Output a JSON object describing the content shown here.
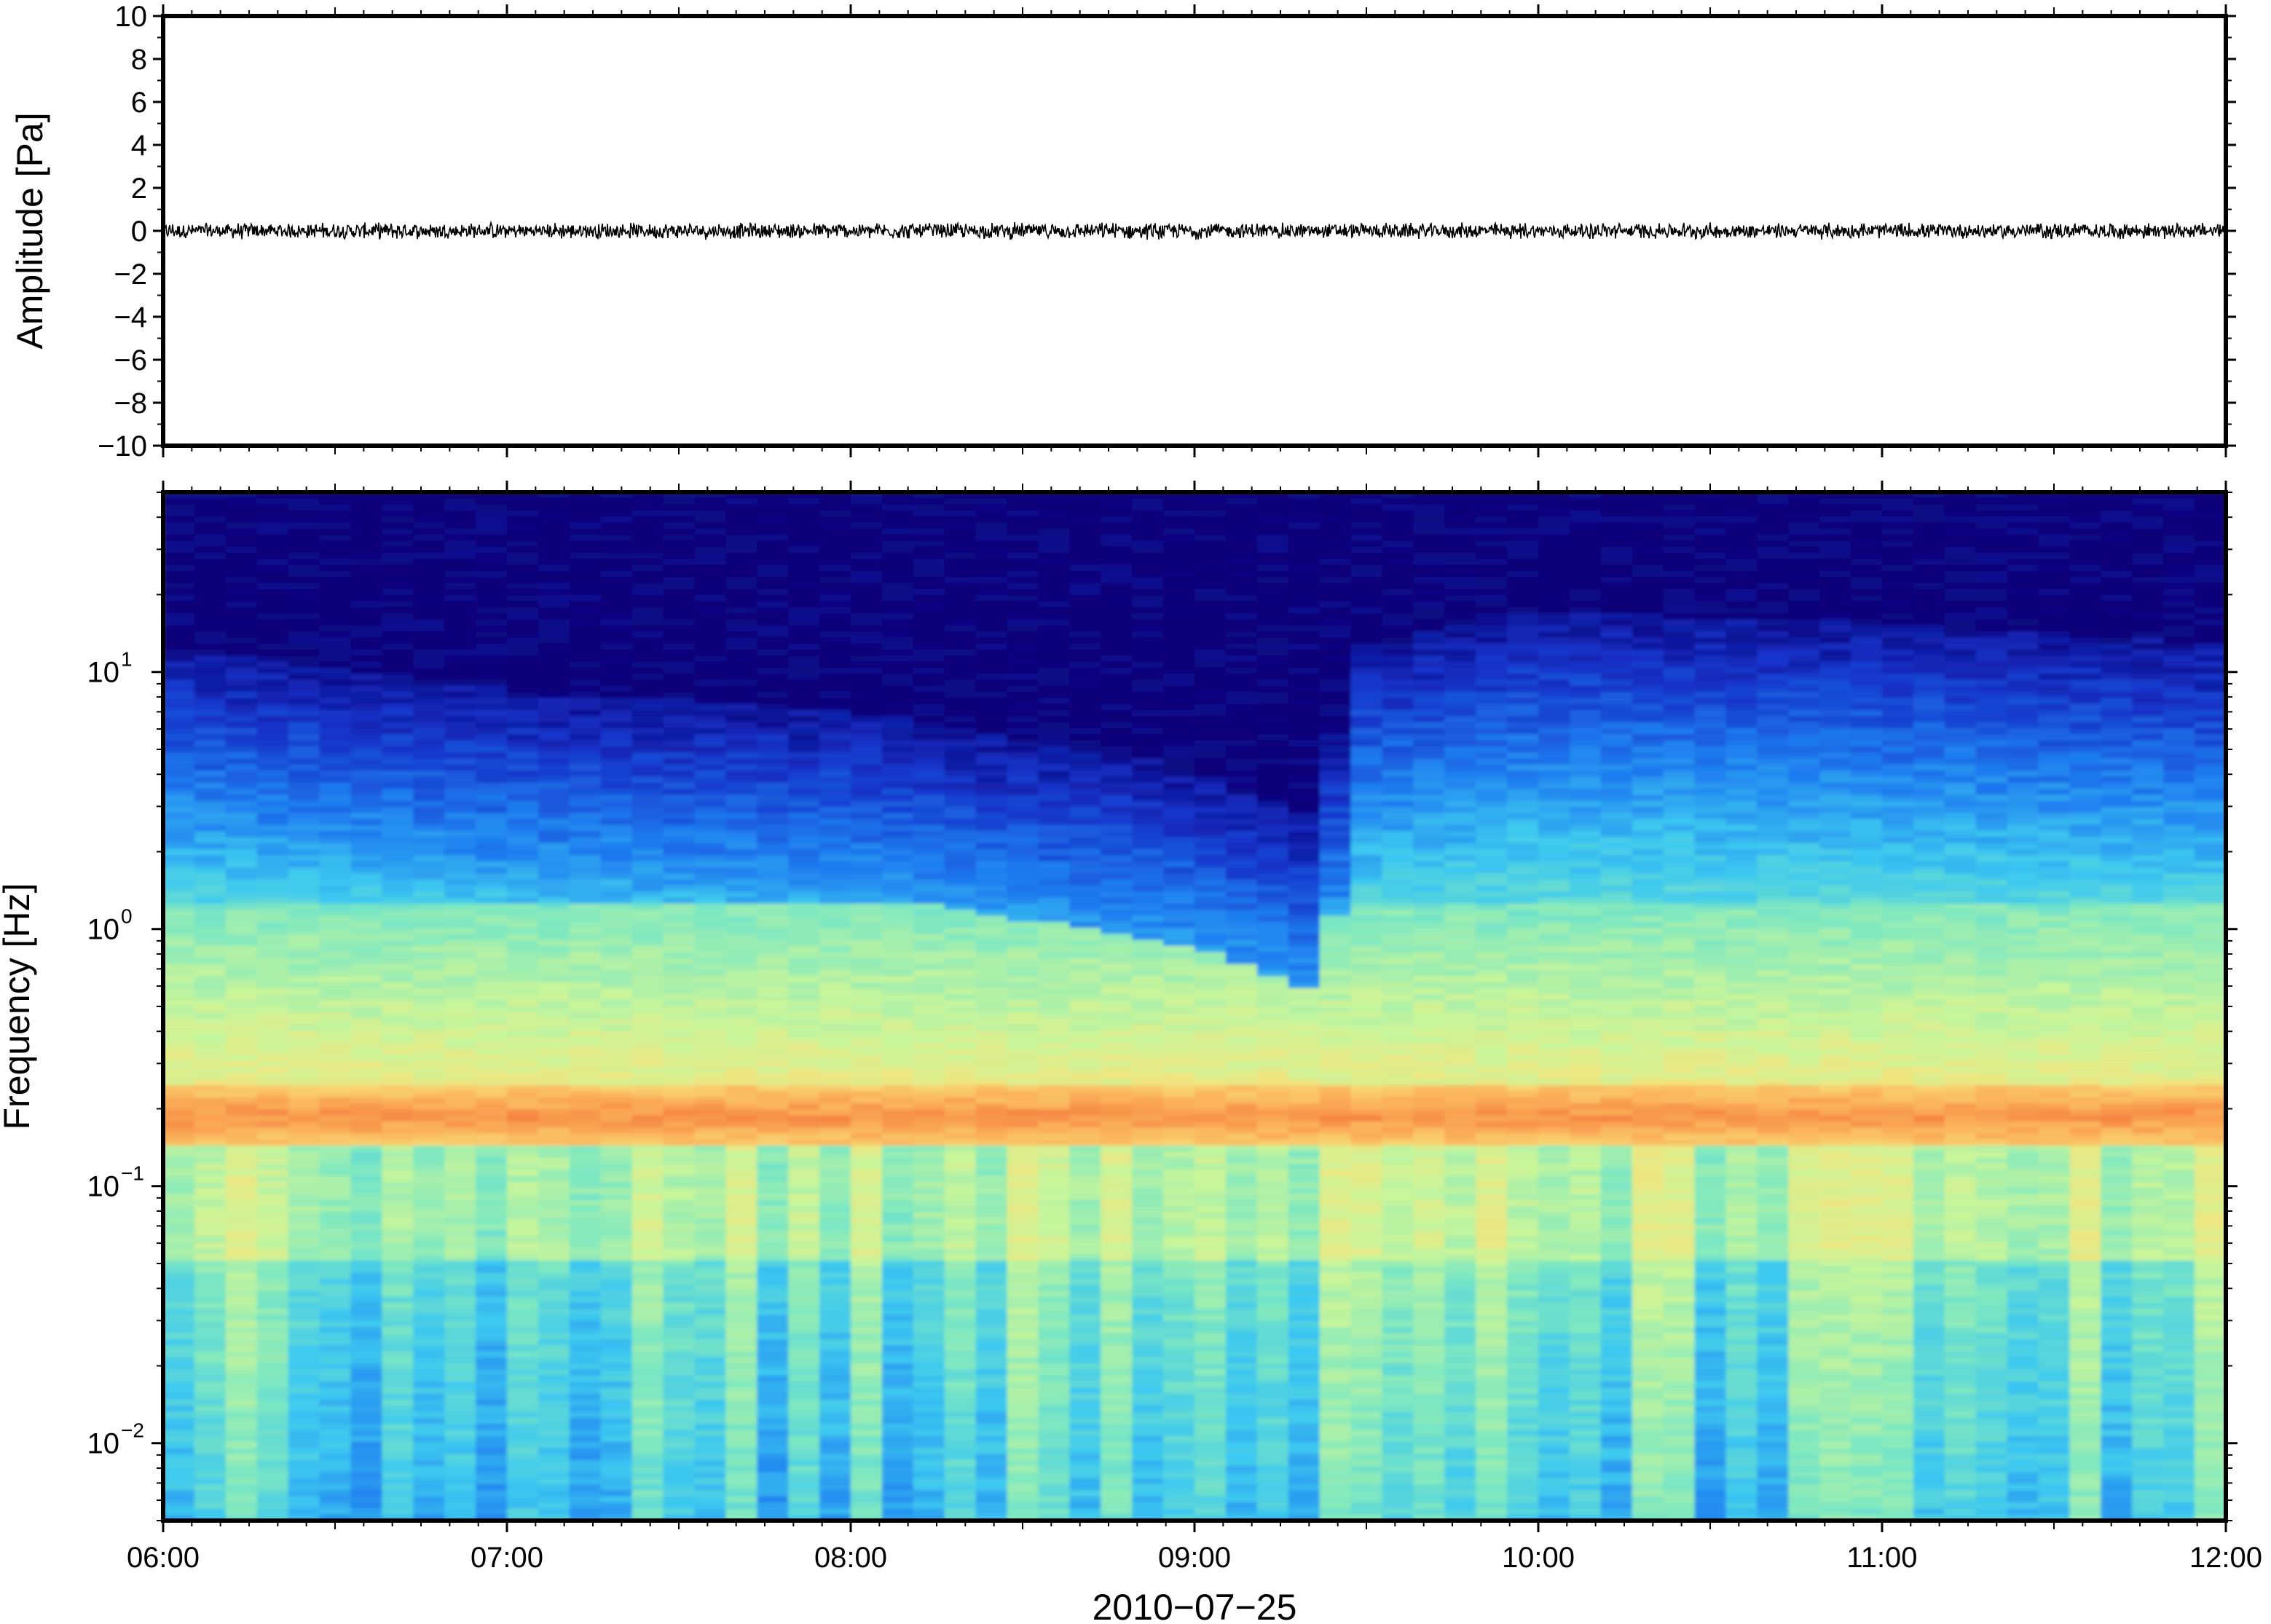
{
  "chart_data": [
    {
      "type": "line",
      "panel": "waveform",
      "ylabel": "Amplitude [Pa]",
      "ylim": [
        -10,
        10
      ],
      "yticks": [
        "10",
        "8",
        "6",
        "4",
        "2",
        "0",
        "−2",
        "−4",
        "−6",
        "−8",
        "−10"
      ],
      "xlim": [
        "06:00",
        "12:00"
      ],
      "grid": false,
      "line_color": "#000000",
      "baseline": 0,
      "noise_amplitude": 0.3
    },
    {
      "type": "heatmap",
      "panel": "spectrogram",
      "ylabel": "Frequency [Hz]",
      "yscale": "log",
      "ylim": [
        0.005,
        50
      ],
      "ytick_values": [
        10,
        1,
        0.1,
        0.01
      ],
      "ytick_labels": [
        {
          "base": "10",
          "exp": "1"
        },
        {
          "base": "10",
          "exp": "0"
        },
        {
          "base": "10",
          "exp": "−1"
        },
        {
          "base": "10",
          "exp": "−2"
        }
      ],
      "xlabel": "2010−07−25",
      "xtick_labels": [
        "06:00",
        "07:00",
        "08:00",
        "09:00",
        "10:00",
        "11:00",
        "12:00"
      ],
      "colormap": [
        "#0b0078",
        "#1533c9",
        "#1f7ef0",
        "#3cc8f0",
        "#7fe8c0",
        "#c8f59a",
        "#f6e27a",
        "#fbb45c",
        "#f47a3c"
      ],
      "features": {
        "microseism_band_hz": [
          0.14,
          0.25
        ],
        "microseism_band_color": "#f6a55a",
        "quiet_high_freq_color": "#0b0078",
        "noise_cutoff_hz_by_hour": [
          {
            "time": "06:00",
            "cutoff": 9
          },
          {
            "time": "07:00",
            "cutoff": 6
          },
          {
            "time": "08:00",
            "cutoff": 5
          },
          {
            "time": "09:00",
            "cutoff": 3
          },
          {
            "time": "09:20",
            "cutoff": 2
          },
          {
            "time": "09:30",
            "cutoff": 9
          },
          {
            "time": "10:00",
            "cutoff": 12
          },
          {
            "time": "11:00",
            "cutoff": 11
          },
          {
            "time": "12:00",
            "cutoff": 9
          }
        ]
      }
    }
  ]
}
